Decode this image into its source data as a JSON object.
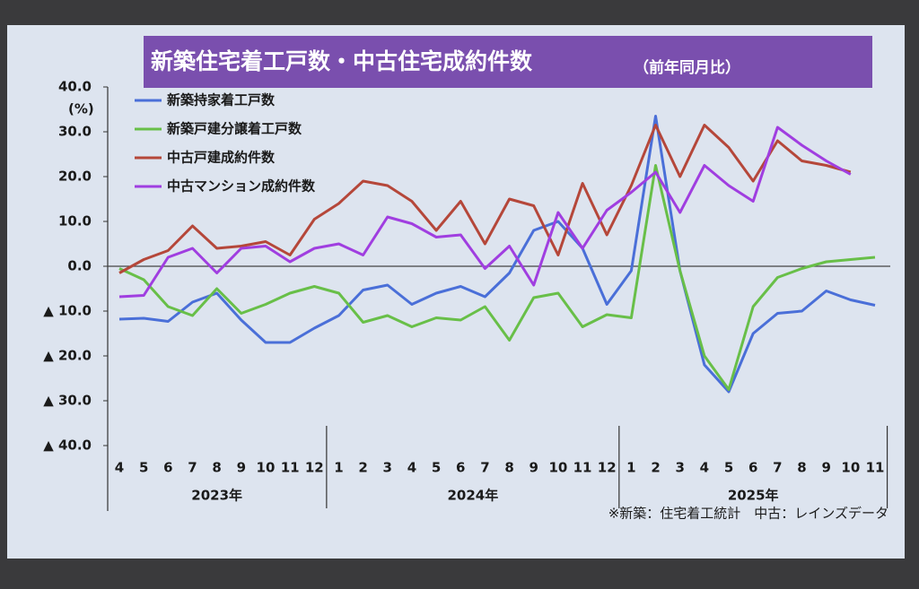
{
  "chart_data": {
    "type": "line",
    "title": "新築住宅着工戸数・中古住宅成約件数",
    "subtitle": "（前年同月比）",
    "y_unit": "(%)",
    "note": "※新築：住宅着工統計　中古：レインズデータ",
    "groups": [
      {
        "label": "2023年",
        "categories": [
          "4",
          "5",
          "6",
          "7",
          "8",
          "9",
          "10",
          "11",
          "12"
        ]
      },
      {
        "label": "2024年",
        "categories": [
          "1",
          "2",
          "3",
          "4",
          "5",
          "6",
          "7",
          "8",
          "9",
          "10",
          "11",
          "12"
        ]
      },
      {
        "label": "2025年",
        "categories": [
          "1",
          "2",
          "3",
          "4",
          "5",
          "6",
          "7",
          "8",
          "9",
          "10",
          "11"
        ]
      }
    ],
    "ylim": [
      -40,
      40
    ],
    "yticks": [
      {
        "value": 40,
        "label": "40.0"
      },
      {
        "value": 30,
        "label": "30.0"
      },
      {
        "value": 20,
        "label": "20.0"
      },
      {
        "value": 10,
        "label": "10.0"
      },
      {
        "value": 0,
        "label": "0.0"
      },
      {
        "value": -10,
        "label": "▲ 10.0"
      },
      {
        "value": -20,
        "label": "▲ 20.0"
      },
      {
        "value": -30,
        "label": "▲ 30.0"
      },
      {
        "value": -40,
        "label": "▲ 40.0"
      }
    ],
    "grid": false,
    "legend": "top-left",
    "series": [
      {
        "name": "新築持家着工戸数",
        "color": "#4a6fd8",
        "values": [
          -11.8,
          -11.6,
          -12.3,
          -8,
          -6,
          -12,
          -17,
          -17,
          -13.8,
          -11,
          -5.3,
          -4.2,
          -8.5,
          -6,
          -4.5,
          -6.8,
          -1.5,
          8,
          10,
          4,
          -8.5,
          -1,
          33.5,
          -1,
          -22,
          -28,
          -15,
          -10.5,
          -10,
          -5.5,
          -7.5,
          -8.7
        ]
      },
      {
        "name": "新築戸建分譲着工戸数",
        "color": "#68bf48",
        "values": [
          -0.5,
          -3,
          -9,
          -11,
          -5,
          -10.5,
          -8.5,
          -6,
          -4.5,
          -6,
          -12.5,
          -11,
          -13.5,
          -11.5,
          -12,
          -9,
          -16.5,
          -7,
          -6,
          -13.5,
          -10.8,
          -11.5,
          22.5,
          -1,
          -20,
          -27.5,
          -9,
          -2.5,
          -0.5,
          1,
          1.5,
          2
        ]
      },
      {
        "name": "中古戸建成約件数",
        "color": "#b5473a",
        "values": [
          -1.5,
          1.5,
          3.5,
          9,
          4,
          4.5,
          5.5,
          2.5,
          10.5,
          14,
          19,
          18,
          14.5,
          8,
          14.5,
          5,
          15,
          13.5,
          2.5,
          18.5,
          7,
          18,
          31.5,
          20,
          31.5,
          26.5,
          19,
          28,
          23.5,
          22.5,
          21,
          null
        ]
      },
      {
        "name": "中古マンション成約件数",
        "color": "#a03ee0",
        "values": [
          -6.8,
          -6.5,
          2,
          4,
          -1.5,
          4,
          4.5,
          1,
          4,
          5,
          2.5,
          11,
          9.5,
          6.5,
          7,
          -0.5,
          4.5,
          -4.2,
          12,
          4,
          12.5,
          16.5,
          21,
          12,
          22.5,
          18,
          14.5,
          31,
          27,
          23.5,
          20.5,
          null
        ]
      }
    ]
  }
}
